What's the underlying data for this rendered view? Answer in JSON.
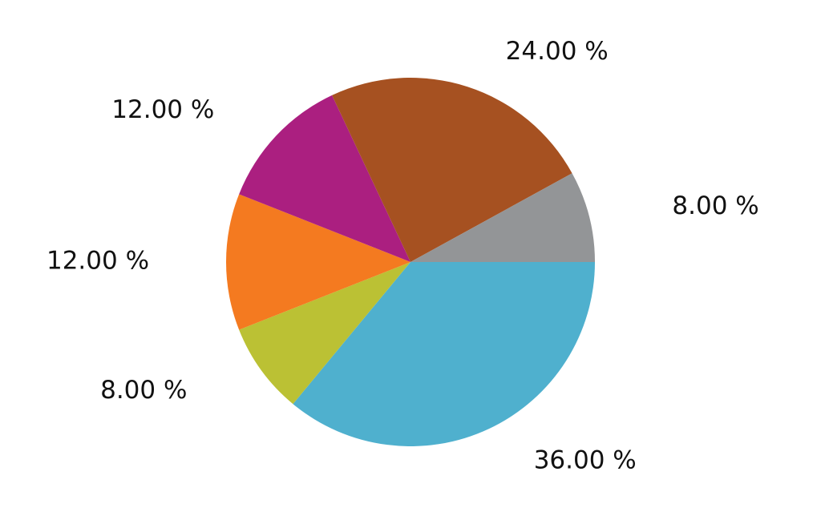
{
  "chart_data": {
    "type": "pie",
    "values": [
      36,
      8,
      12,
      12,
      24,
      8
    ],
    "value_labels": [
      "36.00 %",
      "8.00 %",
      "12.00 %",
      "12.00 %",
      "24.00 %",
      "8.00 %"
    ],
    "colors": [
      "#4fb0ce",
      "#bbc134",
      "#f47a20",
      "#ab1f80",
      "#a65121",
      "#939597"
    ]
  }
}
